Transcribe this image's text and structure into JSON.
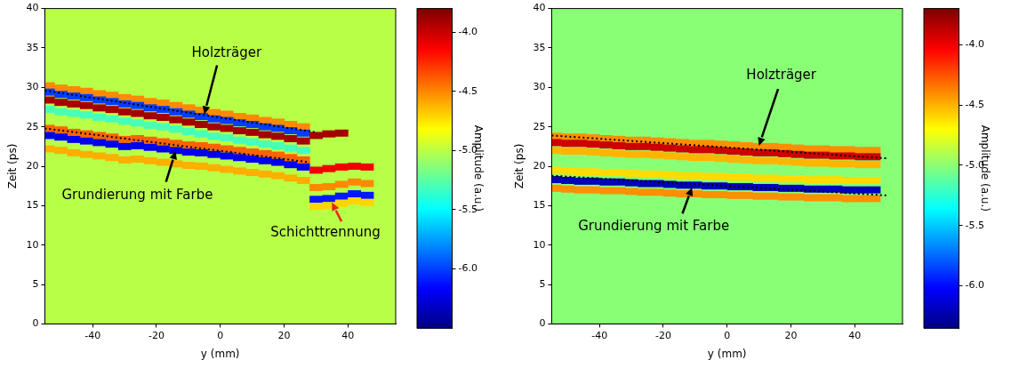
{
  "chart_data": [
    {
      "type": "heatmap",
      "x_label": "y (mm)",
      "y_label": "Zeit (ps)",
      "xlim": [
        -55,
        55
      ],
      "xticks": [
        -40,
        -20,
        0,
        20,
        40
      ],
      "ylim": [
        0,
        40
      ],
      "yticks": [
        0,
        5,
        10,
        15,
        20,
        25,
        30,
        35,
        40
      ],
      "cells": {
        "x": [
          -54,
          -50,
          -46,
          -42,
          -38,
          -34,
          -30,
          -26,
          -22,
          -18,
          -14,
          -10,
          -6,
          -2,
          2,
          6,
          10,
          14,
          18,
          22,
          26,
          30,
          34,
          38,
          42,
          46
        ],
        "background": -5.0,
        "bands": [
          {
            "amplitude": -4.5,
            "t": [
              30.2,
              29.9,
              29.7,
              29.5,
              29.2,
              29.0,
              28.7,
              28.5,
              28.2,
              28.0,
              27.7,
              27.4,
              27.1,
              26.8,
              26.6,
              26.3,
              26.1,
              25.8,
              25.6,
              25.3,
              25.0,
              null,
              null,
              null,
              null,
              null
            ]
          },
          {
            "amplitude": -6.0,
            "t": [
              29.4,
              29.1,
              28.9,
              28.7,
              28.4,
              28.2,
              27.9,
              27.7,
              27.4,
              27.2,
              26.9,
              26.6,
              26.3,
              26.0,
              25.8,
              25.5,
              25.3,
              25.0,
              24.8,
              24.5,
              24.2,
              null,
              null,
              null,
              null,
              null
            ]
          },
          {
            "amplitude": -3.9,
            "t": [
              28.4,
              28.1,
              27.9,
              27.7,
              27.4,
              27.2,
              26.9,
              26.7,
              26.4,
              26.2,
              25.9,
              25.6,
              25.3,
              25.0,
              24.8,
              24.5,
              24.3,
              24.0,
              23.8,
              23.5,
              23.2,
              23.9,
              24.1,
              24.2,
              null,
              null
            ]
          },
          {
            "amplitude": -5.3,
            "t": [
              27.2,
              26.9,
              26.7,
              26.5,
              26.2,
              26.0,
              25.7,
              25.5,
              25.2,
              25.0,
              24.7,
              24.4,
              24.1,
              23.8,
              23.6,
              23.3,
              23.1,
              22.8,
              22.6,
              22.3,
              22.0,
              null,
              null,
              null,
              null,
              null
            ]
          },
          {
            "amplitude": -4.4,
            "t": [
              24.8,
              24.6,
              24.3,
              24.1,
              23.9,
              23.7,
              23.4,
              23.5,
              23.3,
              23.1,
              22.9,
              22.7,
              22.6,
              22.4,
              22.2,
              22.0,
              21.8,
              21.6,
              21.4,
              21.1,
              20.8,
              null,
              null,
              null,
              null,
              null
            ]
          },
          {
            "amplitude": -6.2,
            "t": [
              23.9,
              23.7,
              23.4,
              23.2,
              23.0,
              22.8,
              22.5,
              22.6,
              22.4,
              22.2,
              22.0,
              21.8,
              21.7,
              21.5,
              21.3,
              21.1,
              20.9,
              20.7,
              20.5,
              20.2,
              19.9,
              null,
              null,
              null,
              null,
              null
            ]
          },
          {
            "amplitude": -4.6,
            "t": [
              22.2,
              22.0,
              21.7,
              21.5,
              21.3,
              21.1,
              20.8,
              20.9,
              20.7,
              20.5,
              20.3,
              20.1,
              20.0,
              19.8,
              19.6,
              19.4,
              19.2,
              19.0,
              18.8,
              18.5,
              18.2,
              null,
              null,
              null,
              null,
              null
            ]
          },
          {
            "amplitude": -4.1,
            "t": [
              null,
              null,
              null,
              null,
              null,
              null,
              null,
              null,
              null,
              null,
              null,
              null,
              null,
              null,
              null,
              null,
              null,
              null,
              null,
              null,
              null,
              19.5,
              19.7,
              19.9,
              20.0,
              19.9
            ]
          },
          {
            "amplitude": -4.5,
            "t": [
              null,
              null,
              null,
              null,
              null,
              null,
              null,
              null,
              null,
              null,
              null,
              null,
              null,
              null,
              null,
              null,
              null,
              null,
              null,
              null,
              null,
              17.3,
              17.4,
              17.7,
              18.0,
              17.8
            ]
          },
          {
            "amplitude": -6.1,
            "t": [
              null,
              null,
              null,
              null,
              null,
              null,
              null,
              null,
              null,
              null,
              null,
              null,
              null,
              null,
              null,
              null,
              null,
              null,
              null,
              null,
              null,
              15.8,
              15.9,
              16.2,
              16.5,
              16.3
            ]
          },
          {
            "amplitude": -4.7,
            "t": [
              null,
              null,
              null,
              null,
              null,
              null,
              null,
              null,
              null,
              null,
              null,
              null,
              null,
              null,
              null,
              null,
              null,
              null,
              null,
              null,
              null,
              14.9,
              15.0,
              15.3,
              15.6,
              15.4
            ]
          }
        ]
      },
      "colorbar": {
        "label": "Amplitude (a.u.)",
        "range": [
          -6.5,
          -3.8
        ],
        "ticks": [
          {
            "value": -6,
            "label": "-6.0"
          },
          {
            "value": -5.5,
            "label": "-5.5"
          },
          {
            "value": -5,
            "label": "-5.0"
          },
          {
            "value": -4.5,
            "label": "-4.5"
          },
          {
            "value": -4,
            "label": "-4.0"
          }
        ]
      },
      "lines": [
        {
          "x": [
            -55,
            30
          ],
          "t": [
            29.6,
            24.3
          ],
          "color": "#000000",
          "line_style": "dotted"
        },
        {
          "x": [
            -55,
            28
          ],
          "t": [
            24.8,
            20.5
          ],
          "color": "#000000",
          "line_style": "dotted"
        }
      ],
      "annotations": [
        {
          "text": "Holzträger",
          "x": 2,
          "y": 34.3,
          "arrow": [
            [
              -1,
              32.8
            ],
            [
              -5,
              26.6
            ]
          ],
          "color": "#000000"
        },
        {
          "text": "Grundierung mit Farbe",
          "x": -26,
          "y": 16.3,
          "arrow": [
            [
              -17,
              18.0
            ],
            [
              -14,
              21.9
            ]
          ],
          "color": "#000000"
        },
        {
          "text": "Schichttrennung",
          "x": 33,
          "y": 11.5,
          "arrow": [
            [
              38,
              13.0
            ],
            [
              35,
              15.4
            ]
          ],
          "color": "#e8261c"
        }
      ]
    },
    {
      "type": "heatmap",
      "x_label": "y (mm)",
      "y_label": "Zeit (ps)",
      "xlim": [
        -55,
        55
      ],
      "xticks": [
        -40,
        -20,
        0,
        20,
        40
      ],
      "ylim": [
        0,
        40
      ],
      "yticks": [
        0,
        5,
        10,
        15,
        20,
        25,
        30,
        35,
        40
      ],
      "cells": {
        "x": [
          -54,
          -50,
          -46,
          -42,
          -38,
          -34,
          -30,
          -26,
          -22,
          -18,
          -14,
          -10,
          -6,
          -2,
          2,
          6,
          10,
          14,
          18,
          22,
          26,
          30,
          34,
          38,
          42,
          46
        ],
        "background": -5.0,
        "bands": [
          {
            "amplitude": -4.4,
            "t": [
              23.8,
              23.7,
              23.7,
              23.6,
              23.5,
              23.4,
              23.3,
              23.3,
              23.2,
              23.1,
              23.0,
              22.9,
              22.9,
              22.8,
              22.7,
              22.6,
              22.5,
              22.5,
              22.4,
              22.3,
              22.2,
              22.2,
              22.1,
              22.1,
              22.0,
              22.0
            ]
          },
          {
            "amplitude": -3.9,
            "t": [
              23.0,
              22.9,
              22.9,
              22.8,
              22.7,
              22.6,
              22.5,
              22.5,
              22.4,
              22.3,
              22.2,
              22.1,
              22.1,
              22.0,
              21.9,
              21.8,
              21.7,
              21.7,
              21.6,
              21.5,
              21.4,
              21.4,
              21.3,
              21.3,
              21.2,
              21.2
            ]
          },
          {
            "amplitude": -4.5,
            "t": [
              22.0,
              21.9,
              21.9,
              21.8,
              21.7,
              21.6,
              21.5,
              21.5,
              21.4,
              21.3,
              21.2,
              21.1,
              21.1,
              21.0,
              20.9,
              20.8,
              20.7,
              20.7,
              20.6,
              20.5,
              20.4,
              20.4,
              20.3,
              20.3,
              20.2,
              20.2
            ]
          },
          {
            "amplitude": -4.6,
            "t": [
              19.5,
              19.4,
              19.3,
              19.3,
              19.2,
              19.2,
              19.1,
              19.0,
              19.0,
              18.9,
              18.8,
              18.8,
              18.7,
              18.7,
              18.6,
              18.6,
              18.5,
              18.5,
              18.4,
              18.4,
              18.3,
              18.3,
              18.3,
              18.2,
              18.2,
              18.2
            ]
          },
          {
            "amplitude": -6.2,
            "t": [
              18.3,
              18.2,
              18.1,
              18.1,
              18.0,
              18.0,
              17.9,
              17.8,
              17.8,
              17.7,
              17.6,
              17.6,
              17.5,
              17.5,
              17.4,
              17.4,
              17.3,
              17.3,
              17.2,
              17.2,
              17.1,
              17.1,
              17.1,
              17.0,
              17.0,
              17.0
            ]
          },
          {
            "amplitude": -4.4,
            "t": [
              17.2,
              17.1,
              17.0,
              17.0,
              16.9,
              16.9,
              16.8,
              16.7,
              16.7,
              16.6,
              16.5,
              16.5,
              16.4,
              16.4,
              16.3,
              16.3,
              16.2,
              16.2,
              16.1,
              16.1,
              16.0,
              16.0,
              16.0,
              15.9,
              15.9,
              15.9
            ]
          }
        ]
      },
      "colorbar": {
        "label": "Amplitude (a.u.)",
        "range": [
          -6.35,
          -3.7
        ],
        "ticks": [
          {
            "value": -6,
            "label": "-6.0"
          },
          {
            "value": -5.5,
            "label": "-5.5"
          },
          {
            "value": -5,
            "label": "-5.0"
          },
          {
            "value": -4.5,
            "label": "-4.5"
          },
          {
            "value": -4,
            "label": "-4.0"
          }
        ]
      },
      "lines": [
        {
          "x": [
            -55,
            50
          ],
          "t": [
            23.9,
            21.0
          ],
          "color": "#000000",
          "line_style": "dotted"
        },
        {
          "x": [
            -55,
            50
          ],
          "t": [
            18.8,
            16.3
          ],
          "color": "#000000",
          "line_style": "dotted"
        }
      ],
      "annotations": [
        {
          "text": "Holzträger",
          "x": 17,
          "y": 31.5,
          "arrow": [
            [
              16,
              29.8
            ],
            [
              10,
              22.6
            ]
          ],
          "color": "#000000"
        },
        {
          "text": "Grundierung mit Farbe",
          "x": -23,
          "y": 12.3,
          "arrow": [
            [
              -14,
              14.0
            ],
            [
              -11,
              17.3
            ]
          ],
          "color": "#000000"
        }
      ]
    }
  ]
}
